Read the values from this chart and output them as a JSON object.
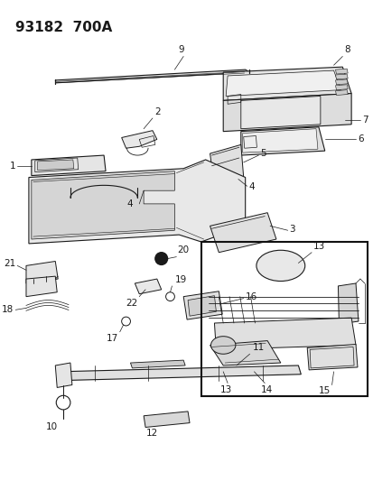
{
  "title": "93182  700A",
  "bg_color": "#ffffff",
  "lc": "#1a1a1a",
  "title_fs": 11,
  "label_fs": 7.5
}
